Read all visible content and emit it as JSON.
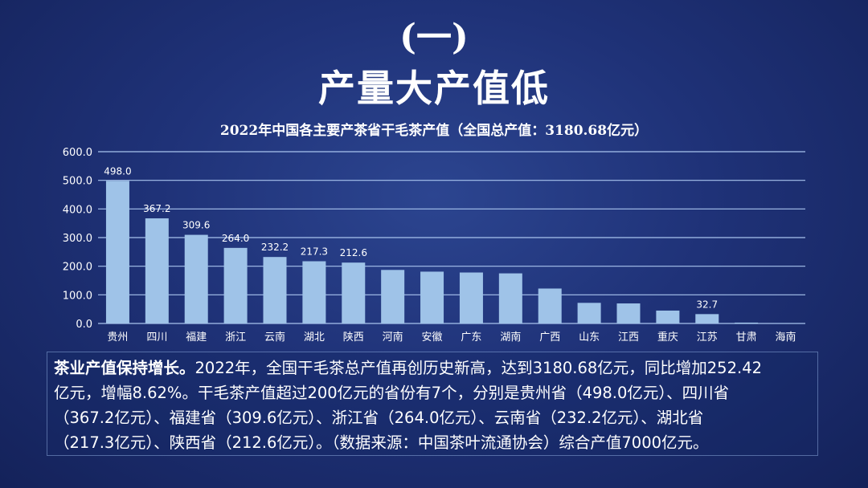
{
  "heading": {
    "section": "(一)",
    "title": "产量大产值低"
  },
  "chart_data": {
    "type": "bar",
    "title": "2022年中国各主要产茶省干毛茶产值（全国总产值：3180.68亿元）",
    "categories": [
      "贵州",
      "四川",
      "福建",
      "浙江",
      "云南",
      "湖北",
      "陕西",
      "河南",
      "安徽",
      "广东",
      "湖南",
      "广西",
      "山东",
      "江西",
      "重庆",
      "江苏",
      "甘肃",
      "海南"
    ],
    "values": [
      498.0,
      367.2,
      309.6,
      264.0,
      232.2,
      217.3,
      212.6,
      187,
      181,
      178,
      175,
      122,
      72,
      70,
      45,
      32.7,
      3,
      0.5
    ],
    "data_labels": [
      "498.0",
      "367.2",
      "309.6",
      "264.0",
      "232.2",
      "217.3",
      "212.6",
      "",
      "",
      "",
      "",
      "",
      "",
      "",
      "",
      "32.7",
      "",
      ""
    ],
    "yticks": [
      "0.0",
      "100.0",
      "200.0",
      "300.0",
      "400.0",
      "500.0",
      "600.0"
    ],
    "ylim": [
      0,
      600
    ],
    "grid": true,
    "xlabel": "",
    "ylabel": "",
    "bar_color": "#9fc3e8"
  },
  "summary": {
    "lead": "茶业产值保持增长。",
    "line1": "2022年，全国干毛茶总产值再创历史新高，达到3180.68亿元，同比增加252.42",
    "line2": "亿元，增幅8.62%。干毛茶产值超过200亿元的省份有7个，分别是贵州省（498.0亿元）、四川省",
    "line3": "（367.2亿元）、福建省（309.6亿元）、浙江省（264.0亿元）、云南省（232.2亿元）、湖北省",
    "line4": "（217.3亿元）、陕西省（212.6亿元）。（数据来源：中国茶叶流通协会）综合产值7000亿元。"
  }
}
